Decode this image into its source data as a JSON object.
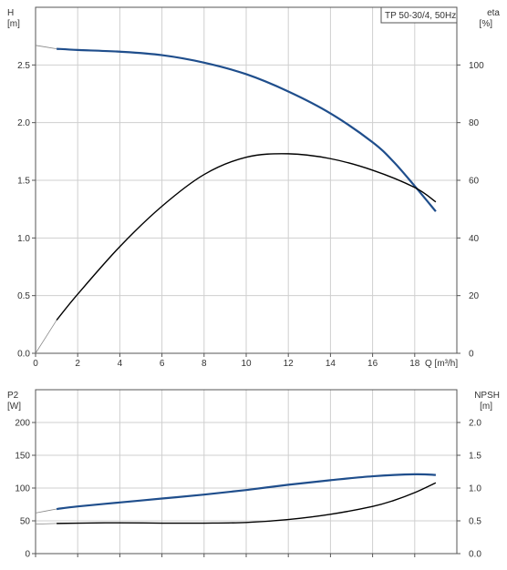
{
  "chart_data": [
    {
      "type": "line",
      "title_box": "TP 50-30/4, 50Hz",
      "x_axis": {
        "label": "Q [m³/h]",
        "min": 0,
        "max": 20,
        "ticks": [
          0,
          2,
          4,
          6,
          8,
          10,
          12,
          14,
          16,
          18
        ]
      },
      "y_axis_left": {
        "label_top": "H",
        "label_unit": "[m]",
        "min": 0,
        "max": 3.0,
        "ticks": [
          0.0,
          0.5,
          1.0,
          1.5,
          2.0,
          2.5
        ]
      },
      "y_axis_right": {
        "label_top": "eta",
        "label_unit": "[%]",
        "min": 0,
        "max": 120,
        "ticks": [
          0,
          20,
          40,
          60,
          80,
          100
        ]
      },
      "grid": true,
      "series": [
        {
          "name": "H",
          "axis": "left",
          "color": "#1f4e8c",
          "x": [
            0,
            1,
            2,
            4,
            6,
            8,
            10,
            12,
            14,
            16,
            17,
            18,
            19
          ],
          "y": [
            2.67,
            2.64,
            2.63,
            2.615,
            2.585,
            2.52,
            2.42,
            2.27,
            2.08,
            1.83,
            1.66,
            1.45,
            1.23
          ]
        },
        {
          "name": "eta",
          "axis": "right",
          "color": "#000000",
          "x": [
            0,
            1,
            2,
            4,
            6,
            8,
            10,
            12,
            14,
            16,
            18,
            19
          ],
          "y": [
            0,
            11.5,
            20.5,
            37,
            51,
            62,
            68,
            69.2,
            67.5,
            63.5,
            57.5,
            52.5
          ]
        }
      ]
    },
    {
      "type": "line",
      "x_axis": {
        "min": 0,
        "max": 20,
        "ticks": [
          0,
          2,
          4,
          6,
          8,
          10,
          12,
          14,
          16,
          18
        ]
      },
      "y_axis_left": {
        "label_top": "P2",
        "label_unit": "[W]",
        "min": 0,
        "max": 250,
        "ticks": [
          0,
          50,
          100,
          150,
          200
        ]
      },
      "y_axis_right": {
        "label_top": "NPSH",
        "label_unit": "[m]",
        "min": 0,
        "max": 2.5,
        "ticks": [
          0.0,
          0.5,
          1.0,
          1.5,
          2.0
        ]
      },
      "grid": true,
      "series": [
        {
          "name": "P2",
          "axis": "left",
          "color": "#1f4e8c",
          "x": [
            0,
            1,
            2,
            4,
            6,
            8,
            10,
            12,
            14,
            16,
            18,
            19
          ],
          "y": [
            62,
            68,
            72,
            78,
            84,
            90,
            97,
            105,
            112,
            118,
            121,
            120
          ]
        },
        {
          "name": "NPSH",
          "axis": "right",
          "color": "#000000",
          "x": [
            0,
            1,
            2,
            4,
            6,
            8,
            10,
            12,
            14,
            16,
            17,
            18,
            19
          ],
          "y": [
            0.45,
            0.46,
            0.465,
            0.47,
            0.465,
            0.465,
            0.475,
            0.52,
            0.6,
            0.72,
            0.81,
            0.93,
            1.08
          ]
        }
      ]
    }
  ]
}
